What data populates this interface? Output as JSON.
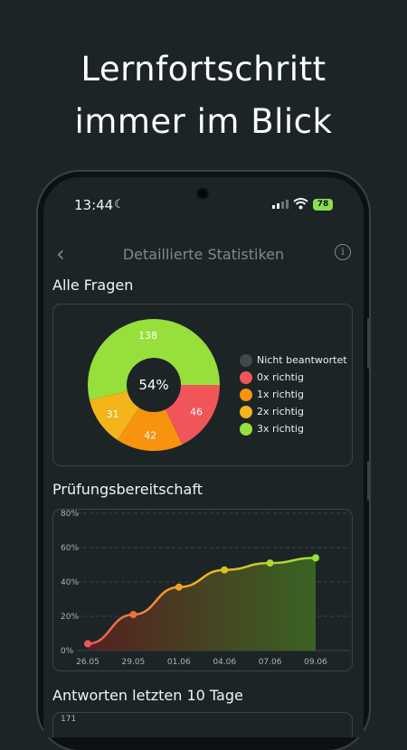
{
  "headline": {
    "line1": "Lernfortschritt",
    "line2": "immer im Blick"
  },
  "statusbar": {
    "time": "13:44",
    "battery": "78"
  },
  "header": {
    "title": "Detaillierte Statistiken"
  },
  "sections": {
    "all_questions": "Alle Fragen",
    "exam_readiness": "Prüfungsbereitschaft",
    "answers_last_days": "Antworten letzten 10 Tage"
  },
  "colors": {
    "not_answered": "#3e4a4e",
    "correct_0x": "#f0555a",
    "correct_1x": "#f7930f",
    "correct_2x": "#f3b51a",
    "correct_3x": "#97df3b",
    "line_start": "#f0555a",
    "line_end": "#97df3b"
  },
  "chart_data": [
    {
      "type": "pie",
      "center_label": "54%",
      "legend": [
        "Nicht beantwortet",
        "0x richtig",
        "1x richtig",
        "2x richtig",
        "3x richtig"
      ],
      "values": [
        0,
        46,
        42,
        31,
        138
      ],
      "value_labels": [
        "",
        "46",
        "42",
        "31",
        "138"
      ]
    },
    {
      "type": "area",
      "categories": [
        "26.05",
        "29.05",
        "01.06",
        "04.06",
        "07.06",
        "09.06"
      ],
      "x_labels": [
        "26.05",
        "29.05",
        "01.06",
        "04.06",
        "07.06",
        "09.06"
      ],
      "y_labels": [
        "0%",
        "20%",
        "40%",
        "60%",
        "80%"
      ],
      "values": [
        4,
        21,
        37,
        47,
        51,
        54
      ],
      "ylim": [
        0,
        80
      ],
      "grid": true
    },
    {
      "type": "bar",
      "visible_y_label": "171"
    }
  ]
}
